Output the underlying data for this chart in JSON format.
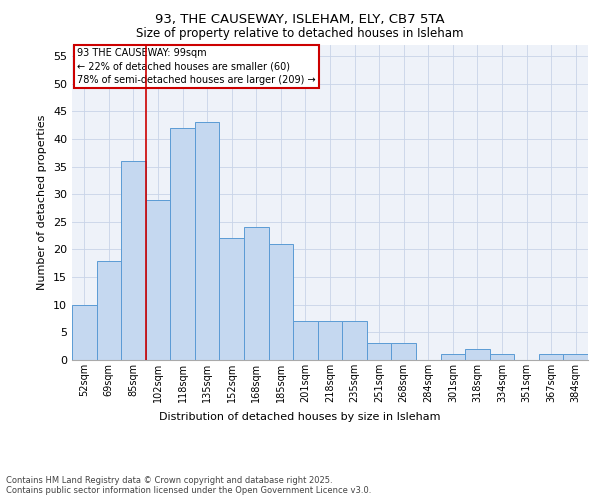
{
  "title_line1": "93, THE CAUSEWAY, ISLEHAM, ELY, CB7 5TA",
  "title_line2": "Size of property relative to detached houses in Isleham",
  "xlabel": "Distribution of detached houses by size in Isleham",
  "ylabel": "Number of detached properties",
  "categories": [
    "52sqm",
    "69sqm",
    "85sqm",
    "102sqm",
    "118sqm",
    "135sqm",
    "152sqm",
    "168sqm",
    "185sqm",
    "201sqm",
    "218sqm",
    "235sqm",
    "251sqm",
    "268sqm",
    "284sqm",
    "301sqm",
    "318sqm",
    "334sqm",
    "351sqm",
    "367sqm",
    "384sqm"
  ],
  "values": [
    10,
    18,
    36,
    29,
    42,
    43,
    22,
    24,
    21,
    7,
    7,
    7,
    3,
    3,
    0,
    1,
    2,
    1,
    0,
    1,
    1
  ],
  "bar_color": "#c5d8f0",
  "bar_edge_color": "#5b9bd5",
  "grid_color": "#c8d4e8",
  "vline_index": 2.5,
  "annotation_text_line1": "93 THE CAUSEWAY: 99sqm",
  "annotation_text_line2": "← 22% of detached houses are smaller (60)",
  "annotation_text_line3": "78% of semi-detached houses are larger (209) →",
  "annotation_box_color": "#ffffff",
  "annotation_box_edge_color": "#cc0000",
  "vline_color": "#cc0000",
  "ylim": [
    0,
    57
  ],
  "yticks": [
    0,
    5,
    10,
    15,
    20,
    25,
    30,
    35,
    40,
    45,
    50,
    55
  ],
  "footnote": "Contains HM Land Registry data © Crown copyright and database right 2025.\nContains public sector information licensed under the Open Government Licence v3.0.",
  "bg_color": "#eef2f9",
  "fig_bg_color": "#ffffff"
}
